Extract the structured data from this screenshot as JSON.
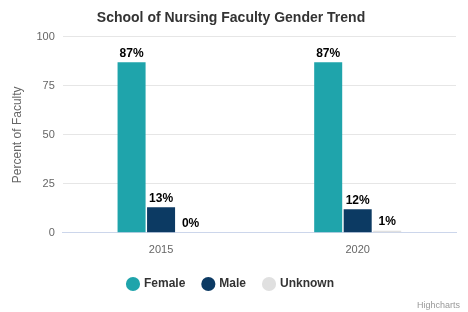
{
  "chart_data": {
    "type": "bar",
    "title": "School of Nursing Faculty Gender Trend",
    "y_label": "Percent of Faculty",
    "categories": [
      "2015",
      "2020"
    ],
    "series": [
      {
        "name": "Female",
        "color": "#1fa4ab",
        "values": [
          87,
          87
        ],
        "value_labels": [
          "87%",
          "87%"
        ]
      },
      {
        "name": "Male",
        "color": "#0c3a63",
        "values": [
          13,
          12
        ],
        "value_labels": [
          "13%",
          "12%"
        ]
      },
      {
        "name": "Unknown",
        "color": "#e0e0e0",
        "values": [
          0,
          1
        ],
        "value_labels": [
          "0%",
          "1%"
        ]
      }
    ],
    "ylim": [
      0,
      100
    ],
    "yticks": [
      0,
      25,
      50,
      75,
      100
    ],
    "grid": true,
    "legend": "bottom",
    "data_labels": true,
    "annotations": [
      "Highcharts"
    ]
  }
}
